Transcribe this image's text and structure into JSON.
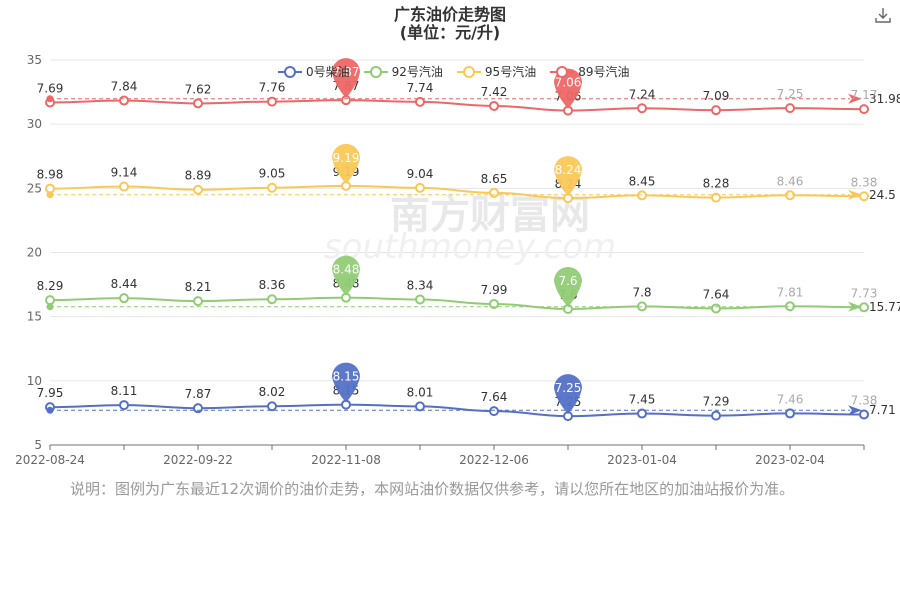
{
  "header": {
    "title": "广东油价走势图",
    "subtitle": "(单位：元/升)",
    "download_icon": "download-icon"
  },
  "note": "说明：图例为广东最近12次调价的油价走势，本网站油价数据仅供参考，请以您所在地区的加油站报价为准。",
  "watermark": {
    "cn": "南方财富网",
    "en": "southmoney.com"
  },
  "chart_data": {
    "type": "line",
    "title": "广东油价走势图",
    "subtitle": "(单位：元/升)",
    "x": [
      "2022-08-24",
      "",
      "2022-09-22",
      "",
      "2022-11-08",
      "",
      "2022-12-06",
      "",
      "2023-01-04",
      "",
      "2023-02-04",
      ""
    ],
    "xticks": [
      "2022-08-24",
      "2022-09-22",
      "2022-11-08",
      "2022-12-06",
      "2023-01-04",
      "2023-02-04"
    ],
    "yticks": [
      "5",
      "10",
      "15",
      "20",
      "25",
      "30",
      "35"
    ],
    "ylim": [
      5,
      35
    ],
    "grid": true,
    "legend_position": "top",
    "series": [
      {
        "name": "0号柴油",
        "color": "#5470c6",
        "values": [
          7.95,
          8.11,
          7.87,
          8.02,
          8.15,
          8.01,
          7.64,
          7.25,
          7.45,
          7.29,
          7.46,
          7.38
        ],
        "display_values": [
          7.95,
          8.11,
          7.87,
          8.02,
          8.15,
          8.01,
          7.64,
          7.25,
          7.45,
          7.29,
          7.46,
          7.38
        ],
        "max_label": "8.15",
        "min_label": "7.25",
        "avg_label": "7.71",
        "offset": 0
      },
      {
        "name": "92号汽油",
        "color": "#91cc75",
        "values": [
          8.29,
          8.44,
          8.21,
          8.36,
          8.48,
          8.34,
          7.99,
          7.6,
          7.8,
          7.64,
          7.81,
          7.73
        ],
        "display_values": [
          8.29,
          8.44,
          8.21,
          8.36,
          8.48,
          8.34,
          7.99,
          7.6,
          7.8,
          7.64,
          7.81,
          7.73
        ],
        "max_label": "8.48",
        "min_label": "7.6",
        "avg_label": "15.77",
        "offset": 8
      },
      {
        "name": "95号汽油",
        "color": "#fac858",
        "values": [
          8.98,
          9.14,
          8.89,
          9.05,
          9.19,
          9.04,
          8.65,
          8.24,
          8.45,
          8.28,
          8.46,
          8.38
        ],
        "display_values": [
          8.98,
          9.14,
          8.89,
          9.05,
          9.19,
          9.04,
          8.65,
          8.24,
          8.45,
          8.28,
          8.46,
          8.38
        ],
        "max_label": "9.19",
        "min_label": "8.24",
        "avg_label": "24.5",
        "offset": 16
      },
      {
        "name": "89号汽油",
        "color": "#ee6666",
        "values": [
          7.69,
          7.84,
          7.62,
          7.76,
          7.87,
          7.74,
          7.42,
          7.06,
          7.24,
          7.09,
          7.25,
          7.17
        ],
        "display_values": [
          7.69,
          7.84,
          7.62,
          7.76,
          7.87,
          7.74,
          7.42,
          7.06,
          7.24,
          7.09,
          7.25,
          7.17
        ],
        "max_label": "7.87",
        "min_label": "7.06",
        "avg_label": "31.98",
        "offset": 24
      }
    ]
  }
}
